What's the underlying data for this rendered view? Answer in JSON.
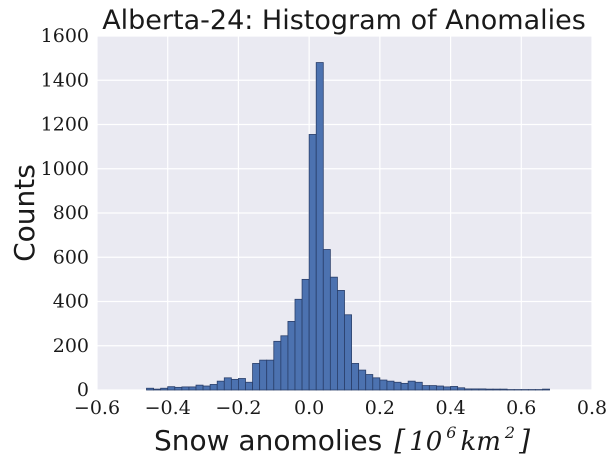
{
  "chart_data": {
    "type": "bar",
    "title": "Alberta-24: Histogram of Anomalies",
    "xlabel_text": "Snow anomolies",
    "xlabel_bracket_open": "[",
    "xlabel_base": "10",
    "xlabel_exp1": "6",
    "xlabel_unit": "km",
    "xlabel_exp2": "2",
    "xlabel_bracket_close": "]",
    "ylabel": "Counts",
    "xlim": [
      -0.6,
      0.8
    ],
    "ylim": [
      0,
      1600
    ],
    "x_ticks": [
      -0.6,
      -0.4,
      -0.2,
      0.0,
      0.2,
      0.4,
      0.6,
      0.8
    ],
    "x_tick_labels": [
      "−0.6",
      "−0.4",
      "−0.2",
      "0.0",
      "0.2",
      "0.4",
      "0.6",
      "0.8"
    ],
    "y_ticks": [
      0,
      200,
      400,
      600,
      800,
      1000,
      1200,
      1400,
      1600
    ],
    "y_tick_labels": [
      "0",
      "200",
      "400",
      "600",
      "800",
      "1000",
      "1200",
      "1400",
      "1600"
    ],
    "grid": true,
    "bin_width": 0.02,
    "bin_edges_start": [
      -0.46,
      -0.44,
      -0.42,
      -0.4,
      -0.38,
      -0.36,
      -0.34,
      -0.32,
      -0.3,
      -0.28,
      -0.26,
      -0.24,
      -0.22,
      -0.2,
      -0.18,
      -0.16,
      -0.14,
      -0.12,
      -0.1,
      -0.08,
      -0.06,
      -0.04,
      -0.02,
      0.0,
      0.02,
      0.04,
      0.06,
      0.08,
      0.1,
      0.12,
      0.14,
      0.16,
      0.18,
      0.2,
      0.22,
      0.24,
      0.26,
      0.28,
      0.3,
      0.32,
      0.34,
      0.36,
      0.38,
      0.4,
      0.42,
      0.44,
      0.46,
      0.48,
      0.5,
      0.52,
      0.54,
      0.56,
      0.58,
      0.6,
      0.62,
      0.64,
      0.66
    ],
    "values": [
      8,
      4,
      8,
      15,
      12,
      14,
      14,
      22,
      18,
      25,
      40,
      55,
      48,
      52,
      35,
      120,
      135,
      135,
      220,
      245,
      310,
      410,
      500,
      1155,
      1480,
      635,
      510,
      450,
      340,
      120,
      90,
      70,
      55,
      45,
      40,
      35,
      30,
      40,
      35,
      20,
      20,
      18,
      14,
      16,
      10,
      5,
      5,
      5,
      4,
      4,
      4,
      2,
      2,
      2,
      2,
      2,
      4
    ],
    "bar_color": "#4c72b0",
    "bar_edge_color": "#2a3f6a",
    "plot_bg": "#eaeaf2",
    "grid_color": "#ffffff"
  }
}
